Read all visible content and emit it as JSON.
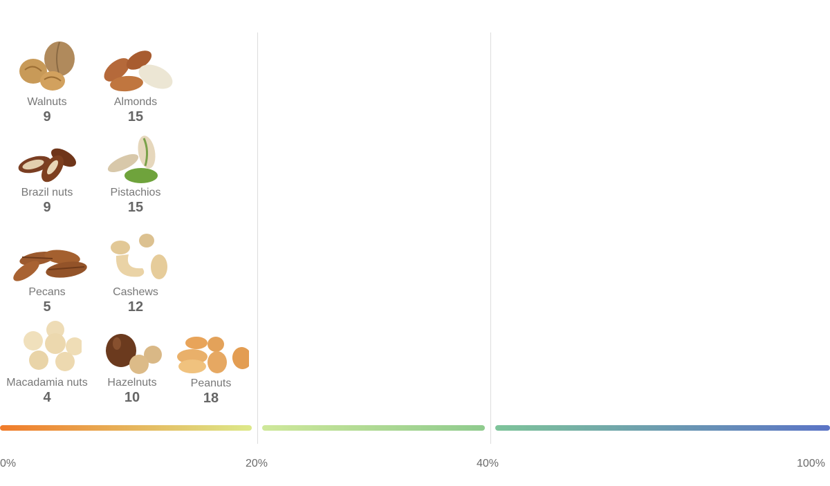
{
  "chart_data": {
    "type": "scale",
    "scale_labels": [
      "0%",
      "20%",
      "40%",
      "100%"
    ],
    "scale_colors": [
      "#f07b2a",
      "#dde98a",
      "#cfe89a",
      "#8fcb8e",
      "#7ec49a",
      "#5b74c6"
    ],
    "items": [
      {
        "name": "Walnuts",
        "value": 9,
        "icon": "walnut-icon"
      },
      {
        "name": "Almonds",
        "value": 15,
        "icon": "almond-icon"
      },
      {
        "name": "Brazil nuts",
        "value": 9,
        "icon": "brazil-nut-icon"
      },
      {
        "name": "Pistachios",
        "value": 15,
        "icon": "pistachio-icon"
      },
      {
        "name": "Pecans",
        "value": 5,
        "icon": "pecan-icon"
      },
      {
        "name": "Cashews",
        "value": 12,
        "icon": "cashew-icon"
      },
      {
        "name": "Macadamia nuts",
        "value": 4,
        "icon": "macadamia-icon"
      },
      {
        "name": "Hazelnuts",
        "value": 10,
        "icon": "hazelnut-icon"
      },
      {
        "name": "Peanuts",
        "value": 18,
        "icon": "peanut-icon"
      }
    ]
  }
}
